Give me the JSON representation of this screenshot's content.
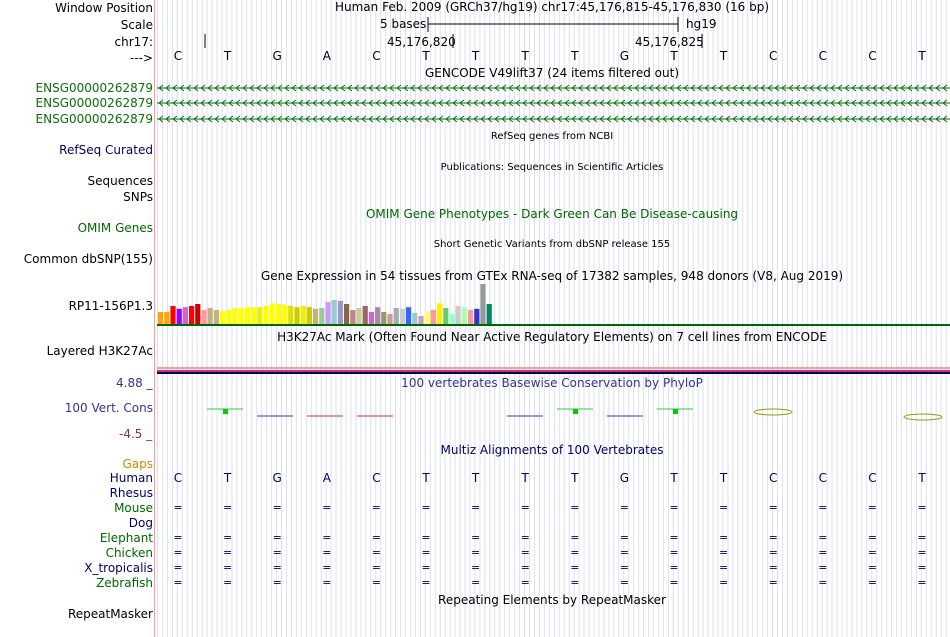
{
  "header": {
    "window_position_label": "Window Position",
    "scale_label": "Scale",
    "chrom_label": "chr17:",
    "strand_label": "--->",
    "position_title": "Human Feb. 2009 (GRCh37/hg19)   chr17:45,176,815-45,176,830 (16 bp)",
    "scale_text": "5 bases",
    "scale_assembly": "hg19",
    "pos_tick_1": "45,176,820",
    "pos_tick_2": "45,176,825"
  },
  "sequence": [
    "C",
    "T",
    "G",
    "A",
    "C",
    "T",
    "T",
    "T",
    "T",
    "G",
    "T",
    "T",
    "C",
    "C",
    "C",
    "T"
  ],
  "tracks": {
    "gencode": {
      "title": "GENCODE V49lift37 (24 items filtered out)",
      "items": [
        "ENSG00000262879",
        "ENSG00000262879",
        "ENSG00000262879"
      ]
    },
    "refseq": {
      "title": "RefSeq genes from NCBI",
      "label": "RefSeq Curated"
    },
    "publications": {
      "title": "Publications: Sequences in Scientific Articles",
      "label": "Sequences"
    },
    "snps_label": "SNPs",
    "omim": {
      "title": "OMIM Gene Phenotypes - Dark Green Can Be Disease-causing",
      "label": "OMIM Genes"
    },
    "dbsnp": {
      "title": "Short Genetic Variants from dbSNP release 155",
      "label": "Common dbSNP(155)"
    },
    "gtex": {
      "title": "Gene Expression in 54 tissues from GTEx RNA-seq of 17382 samples, 948 donors (V8, Aug 2019)",
      "label": "RP11-156P1.3",
      "values": [
        0.3,
        0.3,
        0.45,
        0.38,
        0.42,
        0.45,
        0.5,
        0.35,
        0.4,
        0.35,
        0.32,
        0.35,
        0.4,
        0.4,
        0.42,
        0.42,
        0.42,
        0.45,
        0.52,
        0.5,
        0.48,
        0.45,
        0.42,
        0.45,
        0.42,
        0.38,
        0.4,
        0.55,
        0.6,
        0.58,
        0.5,
        0.35,
        0.4,
        0.45,
        0.3,
        0.42,
        0.3,
        0.25,
        0.4,
        0.38,
        0.42,
        0.28,
        0.2,
        0.3,
        0.35,
        0.52,
        0.4,
        0.25,
        0.45,
        0.42,
        0.35,
        0.38,
        1.0,
        0.5
      ],
      "colors": [
        "#ffa500",
        "#ffa500",
        "#ff0000",
        "#9900ff",
        "#cc66cc",
        "#ff0000",
        "#cc0000",
        "#ff9999",
        "#c2b280",
        "#c2b280",
        "#ffff00",
        "#ffff00",
        "#ffff00",
        "#ffff00",
        "#ffff00",
        "#ffff00",
        "#eeee00",
        "#ffff00",
        "#ffff00",
        "#ffff00",
        "#ffff00",
        "#dddd00",
        "#cccc00",
        "#eeee00",
        "#cccc00",
        "#c2b280",
        "#99cc99",
        "#cc99ff",
        "#99cccc",
        "#9999cc",
        "#886644",
        "#bb8888",
        "#cccc99",
        "#996666",
        "#cc66cc",
        "#aa88aa",
        "#999966",
        "#cc9999",
        "#aaaaaa",
        "#cccccc",
        "#3366ff",
        "#99cccc",
        "#cc99cc",
        "#ffff66",
        "#ff9999",
        "#ffee00",
        "#66cc66",
        "#99ffcc",
        "#cccccc",
        "#aaffaa",
        "#ff9999",
        "#3333cc",
        "#999999",
        "#008866"
      ]
    },
    "h3k27ac": {
      "title": "H3K27Ac Mark (Often Found Near Active Regulatory Elements) on 7 cell lines from ENCODE",
      "label": "Layered H3K27Ac"
    },
    "phylop": {
      "title": "100 vertebrates Basewise Conservation by PhyloP",
      "label": "100 Vert. Cons",
      "max": "4.88 _",
      "min": "-4.5 _"
    },
    "multiz": {
      "title": "Multiz Alignments of 100 Vertebrates",
      "gaps_label": "Gaps",
      "species": [
        "Human",
        "Rhesus",
        "Mouse",
        "Dog",
        "Elephant",
        "Chicken",
        "X_tropicalis",
        "Zebrafish"
      ],
      "eq": "="
    },
    "repeatmasker": {
      "title": "Repeating Elements by RepeatMasker",
      "label": "RepeatMasker"
    }
  },
  "colors": {
    "label_navy": "#000066",
    "label_green": "#006600",
    "gencode_green": "#0a6e0a",
    "omim_green": "#006600",
    "phylop_blue": "#333399",
    "gaps_orange": "#cc8800",
    "max_blue": "#333399",
    "min_red": "#883333"
  }
}
